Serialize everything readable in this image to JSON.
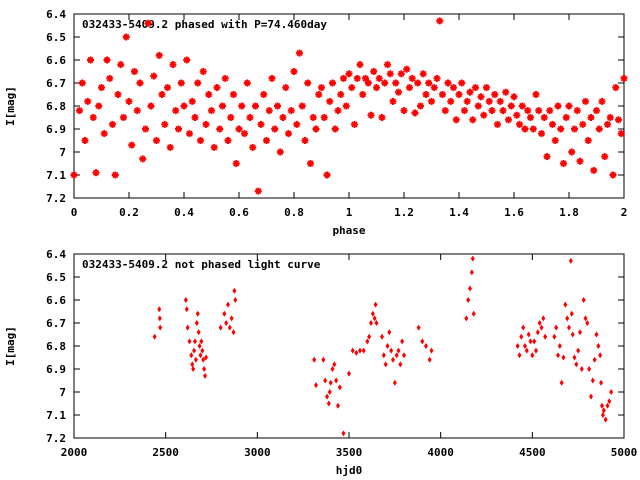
{
  "chart_data": [
    {
      "type": "scatter",
      "title": "032433-5409.2 phased with P=74.460day",
      "xlabel": "phase",
      "ylabel": "I[mag]",
      "xlim": [
        0,
        2
      ],
      "ylim": [
        7.2,
        6.4
      ],
      "y_inverted": true,
      "xticks": [
        "0",
        "0.2",
        "0.4",
        "0.6",
        "0.8",
        "1",
        "1.2",
        "1.4",
        "1.6",
        "1.8",
        "2"
      ],
      "xtick_values": [
        0,
        0.2,
        0.4,
        0.6,
        0.8,
        1,
        1.2,
        1.4,
        1.6,
        1.8,
        2
      ],
      "yticks": [
        "6.4",
        "6.5",
        "6.6",
        "6.7",
        "6.8",
        "6.9",
        "7",
        "7.1",
        "7.2"
      ],
      "ytick_values": [
        6.4,
        6.5,
        6.6,
        6.7,
        6.8,
        6.9,
        7.0,
        7.1,
        7.2
      ],
      "marker": "star",
      "color": "#ff0000",
      "grid": false,
      "points": [
        [
          0.0,
          7.1
        ],
        [
          0.02,
          6.82
        ],
        [
          0.03,
          6.7
        ],
        [
          0.04,
          6.95
        ],
        [
          0.05,
          6.78
        ],
        [
          0.06,
          6.6
        ],
        [
          0.07,
          6.85
        ],
        [
          0.08,
          7.09
        ],
        [
          0.09,
          6.8
        ],
        [
          0.1,
          6.72
        ],
        [
          0.11,
          6.92
        ],
        [
          0.12,
          6.6
        ],
        [
          0.13,
          6.68
        ],
        [
          0.14,
          6.88
        ],
        [
          0.15,
          7.1
        ],
        [
          0.16,
          6.75
        ],
        [
          0.17,
          6.62
        ],
        [
          0.18,
          6.85
        ],
        [
          0.19,
          6.5
        ],
        [
          0.2,
          6.78
        ],
        [
          0.21,
          6.97
        ],
        [
          0.22,
          6.65
        ],
        [
          0.23,
          6.82
        ],
        [
          0.24,
          6.7
        ],
        [
          0.25,
          7.03
        ],
        [
          0.26,
          6.9
        ],
        [
          0.27,
          6.44
        ],
        [
          0.28,
          6.8
        ],
        [
          0.29,
          6.67
        ],
        [
          0.3,
          6.95
        ],
        [
          0.31,
          6.58
        ],
        [
          0.32,
          6.75
        ],
        [
          0.33,
          6.88
        ],
        [
          0.34,
          6.72
        ],
        [
          0.35,
          6.98
        ],
        [
          0.36,
          6.62
        ],
        [
          0.37,
          6.82
        ],
        [
          0.38,
          6.9
        ],
        [
          0.39,
          6.7
        ],
        [
          0.4,
          6.8
        ],
        [
          0.41,
          6.6
        ],
        [
          0.42,
          6.92
        ],
        [
          0.43,
          6.78
        ],
        [
          0.44,
          6.85
        ],
        [
          0.45,
          6.7
        ],
        [
          0.46,
          6.95
        ],
        [
          0.47,
          6.65
        ],
        [
          0.48,
          6.88
        ],
        [
          0.49,
          6.75
        ],
        [
          0.5,
          6.82
        ],
        [
          0.51,
          6.98
        ],
        [
          0.52,
          6.72
        ],
        [
          0.53,
          6.9
        ],
        [
          0.54,
          6.8
        ],
        [
          0.55,
          6.68
        ],
        [
          0.56,
          6.95
        ],
        [
          0.57,
          6.85
        ],
        [
          0.58,
          6.75
        ],
        [
          0.59,
          7.05
        ],
        [
          0.6,
          6.9
        ],
        [
          0.61,
          6.8
        ],
        [
          0.62,
          6.92
        ],
        [
          0.63,
          6.7
        ],
        [
          0.64,
          6.85
        ],
        [
          0.65,
          6.98
        ],
        [
          0.66,
          6.8
        ],
        [
          0.67,
          7.17
        ],
        [
          0.68,
          6.88
        ],
        [
          0.69,
          6.75
        ],
        [
          0.7,
          6.95
        ],
        [
          0.71,
          6.82
        ],
        [
          0.72,
          6.68
        ],
        [
          0.73,
          6.9
        ],
        [
          0.74,
          6.8
        ],
        [
          0.75,
          7.0
        ],
        [
          0.76,
          6.85
        ],
        [
          0.77,
          6.72
        ],
        [
          0.78,
          6.92
        ],
        [
          0.79,
          6.82
        ],
        [
          0.8,
          6.65
        ],
        [
          0.81,
          6.88
        ],
        [
          0.82,
          6.57
        ],
        [
          0.83,
          6.8
        ],
        [
          0.84,
          6.95
        ],
        [
          0.85,
          6.7
        ],
        [
          0.86,
          7.05
        ],
        [
          0.87,
          6.85
        ],
        [
          0.88,
          6.9
        ],
        [
          0.89,
          6.75
        ],
        [
          0.9,
          6.72
        ],
        [
          0.91,
          6.85
        ],
        [
          0.92,
          7.1
        ],
        [
          0.93,
          6.78
        ],
        [
          0.94,
          6.7
        ],
        [
          0.95,
          6.9
        ],
        [
          0.96,
          6.82
        ],
        [
          0.97,
          6.75
        ],
        [
          0.98,
          6.68
        ],
        [
          0.99,
          6.8
        ],
        [
          1.0,
          6.66
        ],
        [
          1.01,
          6.72
        ],
        [
          1.02,
          6.88
        ],
        [
          1.03,
          6.68
        ],
        [
          1.04,
          6.62
        ],
        [
          1.05,
          6.75
        ],
        [
          1.06,
          6.68
        ],
        [
          1.07,
          6.7
        ],
        [
          1.08,
          6.84
        ],
        [
          1.09,
          6.65
        ],
        [
          1.1,
          6.72
        ],
        [
          1.11,
          6.68
        ],
        [
          1.12,
          6.85
        ],
        [
          1.13,
          6.7
        ],
        [
          1.14,
          6.62
        ],
        [
          1.15,
          6.66
        ],
        [
          1.16,
          6.78
        ],
        [
          1.17,
          6.7
        ],
        [
          1.18,
          6.74
        ],
        [
          1.19,
          6.66
        ],
        [
          1.2,
          6.82
        ],
        [
          1.21,
          6.64
        ],
        [
          1.22,
          6.72
        ],
        [
          1.23,
          6.68
        ],
        [
          1.24,
          6.83
        ],
        [
          1.25,
          6.7
        ],
        [
          1.26,
          6.8
        ],
        [
          1.27,
          6.66
        ],
        [
          1.28,
          6.75
        ],
        [
          1.29,
          6.7
        ],
        [
          1.3,
          6.78
        ],
        [
          1.31,
          6.72
        ],
        [
          1.32,
          6.68
        ],
        [
          1.33,
          6.43
        ],
        [
          1.34,
          6.75
        ],
        [
          1.35,
          6.82
        ],
        [
          1.36,
          6.7
        ],
        [
          1.37,
          6.78
        ],
        [
          1.38,
          6.72
        ],
        [
          1.39,
          6.86
        ],
        [
          1.4,
          6.75
        ],
        [
          1.41,
          6.7
        ],
        [
          1.42,
          6.82
        ],
        [
          1.43,
          6.78
        ],
        [
          1.44,
          6.74
        ],
        [
          1.45,
          6.86
        ],
        [
          1.46,
          6.72
        ],
        [
          1.47,
          6.8
        ],
        [
          1.48,
          6.76
        ],
        [
          1.49,
          6.84
        ],
        [
          1.5,
          6.72
        ],
        [
          1.51,
          6.78
        ],
        [
          1.52,
          6.82
        ],
        [
          1.53,
          6.75
        ],
        [
          1.54,
          6.88
        ],
        [
          1.55,
          6.78
        ],
        [
          1.56,
          6.82
        ],
        [
          1.57,
          6.74
        ],
        [
          1.58,
          6.86
        ],
        [
          1.59,
          6.8
        ],
        [
          1.6,
          6.76
        ],
        [
          1.61,
          6.84
        ],
        [
          1.62,
          6.88
        ],
        [
          1.63,
          6.8
        ],
        [
          1.64,
          6.9
        ],
        [
          1.65,
          6.82
        ],
        [
          1.66,
          6.85
        ],
        [
          1.67,
          6.9
        ],
        [
          1.68,
          6.75
        ],
        [
          1.69,
          6.82
        ],
        [
          1.7,
          6.92
        ],
        [
          1.71,
          6.85
        ],
        [
          1.72,
          7.02
        ],
        [
          1.73,
          6.82
        ],
        [
          1.74,
          6.88
        ],
        [
          1.75,
          6.95
        ],
        [
          1.76,
          6.8
        ],
        [
          1.77,
          6.9
        ],
        [
          1.78,
          7.05
        ],
        [
          1.79,
          6.85
        ],
        [
          1.8,
          6.8
        ],
        [
          1.81,
          7.0
        ],
        [
          1.82,
          6.9
        ],
        [
          1.83,
          6.82
        ],
        [
          1.84,
          7.04
        ],
        [
          1.85,
          6.88
        ],
        [
          1.86,
          6.78
        ],
        [
          1.87,
          6.95
        ],
        [
          1.88,
          6.85
        ],
        [
          1.89,
          7.08
        ],
        [
          1.9,
          6.82
        ],
        [
          1.91,
          6.9
        ],
        [
          1.92,
          6.78
        ],
        [
          1.93,
          7.02
        ],
        [
          1.94,
          6.88
        ],
        [
          1.95,
          6.85
        ],
        [
          1.96,
          7.1
        ],
        [
          1.97,
          6.72
        ],
        [
          1.98,
          6.86
        ],
        [
          1.99,
          6.92
        ],
        [
          2.0,
          6.68
        ]
      ]
    },
    {
      "type": "scatter",
      "title": "032433-5409.2 not phased light curve",
      "xlabel": "hjd0",
      "ylabel": "I[mag]",
      "xlim": [
        2000,
        5000
      ],
      "ylim": [
        7.2,
        6.4
      ],
      "y_inverted": true,
      "xticks": [
        "2000",
        "2500",
        "3000",
        "3500",
        "4000",
        "4500",
        "5000"
      ],
      "xtick_values": [
        2000,
        2500,
        3000,
        3500,
        4000,
        4500,
        5000
      ],
      "yticks": [
        "6.4",
        "6.5",
        "6.6",
        "6.7",
        "6.8",
        "6.9",
        "7",
        "7.1",
        "7.2"
      ],
      "ytick_values": [
        6.4,
        6.5,
        6.6,
        6.7,
        6.8,
        6.9,
        7.0,
        7.1,
        7.2
      ],
      "marker": "diamond",
      "color": "#ff0000",
      "grid": false,
      "points": [
        [
          2440,
          6.76
        ],
        [
          2465,
          6.64
        ],
        [
          2468,
          6.68
        ],
        [
          2470,
          6.72
        ],
        [
          2610,
          6.6
        ],
        [
          2615,
          6.64
        ],
        [
          2620,
          6.72
        ],
        [
          2630,
          6.78
        ],
        [
          2640,
          6.84
        ],
        [
          2645,
          6.88
        ],
        [
          2650,
          6.9
        ],
        [
          2655,
          6.82
        ],
        [
          2660,
          6.78
        ],
        [
          2665,
          6.86
        ],
        [
          2670,
          6.7
        ],
        [
          2675,
          6.66
        ],
        [
          2680,
          6.74
        ],
        [
          2685,
          6.8
        ],
        [
          2690,
          6.84
        ],
        [
          2695,
          6.78
        ],
        [
          2700,
          6.82
        ],
        [
          2705,
          6.86
        ],
        [
          2710,
          6.9
        ],
        [
          2715,
          6.93
        ],
        [
          2720,
          6.85
        ],
        [
          2800,
          6.72
        ],
        [
          2820,
          6.66
        ],
        [
          2830,
          6.7
        ],
        [
          2840,
          6.62
        ],
        [
          2850,
          6.72
        ],
        [
          2860,
          6.68
        ],
        [
          2870,
          6.74
        ],
        [
          2875,
          6.56
        ],
        [
          2880,
          6.6
        ],
        [
          3310,
          6.86
        ],
        [
          3320,
          6.97
        ],
        [
          3360,
          6.86
        ],
        [
          3370,
          6.95
        ],
        [
          3380,
          7.02
        ],
        [
          3390,
          7.05
        ],
        [
          3395,
          7.0
        ],
        [
          3400,
          6.96
        ],
        [
          3410,
          6.9
        ],
        [
          3420,
          6.88
        ],
        [
          3430,
          6.95
        ],
        [
          3440,
          7.06
        ],
        [
          3450,
          6.98
        ],
        [
          3470,
          7.18
        ],
        [
          3500,
          6.92
        ],
        [
          3520,
          6.82
        ],
        [
          3540,
          6.83
        ],
        [
          3560,
          6.82
        ],
        [
          3580,
          6.82
        ],
        [
          3600,
          6.78
        ],
        [
          3610,
          6.76
        ],
        [
          3620,
          6.7
        ],
        [
          3630,
          6.66
        ],
        [
          3640,
          6.68
        ],
        [
          3645,
          6.62
        ],
        [
          3650,
          6.7
        ],
        [
          3680,
          6.76
        ],
        [
          3690,
          6.84
        ],
        [
          3700,
          6.88
        ],
        [
          3710,
          6.8
        ],
        [
          3720,
          6.74
        ],
        [
          3730,
          6.82
        ],
        [
          3740,
          6.86
        ],
        [
          3750,
          6.96
        ],
        [
          3760,
          6.84
        ],
        [
          3770,
          6.82
        ],
        [
          3780,
          6.88
        ],
        [
          3790,
          6.78
        ],
        [
          3800,
          6.84
        ],
        [
          3880,
          6.72
        ],
        [
          3900,
          6.78
        ],
        [
          3920,
          6.8
        ],
        [
          3940,
          6.86
        ],
        [
          3950,
          6.82
        ],
        [
          4140,
          6.68
        ],
        [
          4150,
          6.6
        ],
        [
          4160,
          6.55
        ],
        [
          4170,
          6.48
        ],
        [
          4175,
          6.42
        ],
        [
          4180,
          6.66
        ],
        [
          4420,
          6.8
        ],
        [
          4430,
          6.84
        ],
        [
          4440,
          6.76
        ],
        [
          4450,
          6.72
        ],
        [
          4460,
          6.8
        ],
        [
          4470,
          6.82
        ],
        [
          4480,
          6.75
        ],
        [
          4490,
          6.78
        ],
        [
          4500,
          6.84
        ],
        [
          4510,
          6.78
        ],
        [
          4520,
          6.82
        ],
        [
          4530,
          6.74
        ],
        [
          4540,
          6.7
        ],
        [
          4550,
          6.72
        ],
        [
          4560,
          6.68
        ],
        [
          4570,
          6.76
        ],
        [
          4620,
          6.76
        ],
        [
          4630,
          6.72
        ],
        [
          4640,
          6.84
        ],
        [
          4650,
          6.8
        ],
        [
          4660,
          6.96
        ],
        [
          4670,
          6.85
        ],
        [
          4680,
          6.62
        ],
        [
          4690,
          6.68
        ],
        [
          4700,
          6.72
        ],
        [
          4710,
          6.43
        ],
        [
          4715,
          6.66
        ],
        [
          4720,
          6.75
        ],
        [
          4730,
          6.85
        ],
        [
          4740,
          6.88
        ],
        [
          4750,
          6.82
        ],
        [
          4760,
          6.74
        ],
        [
          4770,
          6.9
        ],
        [
          4780,
          6.6
        ],
        [
          4790,
          6.68
        ],
        [
          4800,
          6.7
        ],
        [
          4810,
          6.9
        ],
        [
          4820,
          7.02
        ],
        [
          4830,
          6.95
        ],
        [
          4840,
          6.86
        ],
        [
          4850,
          6.75
        ],
        [
          4860,
          6.8
        ],
        [
          4870,
          6.84
        ],
        [
          4875,
          6.96
        ],
        [
          4880,
          7.06
        ],
        [
          4885,
          7.1
        ],
        [
          4890,
          7.08
        ],
        [
          4900,
          7.12
        ],
        [
          4910,
          7.06
        ],
        [
          4920,
          7.04
        ],
        [
          4930,
          7.0
        ]
      ]
    }
  ]
}
